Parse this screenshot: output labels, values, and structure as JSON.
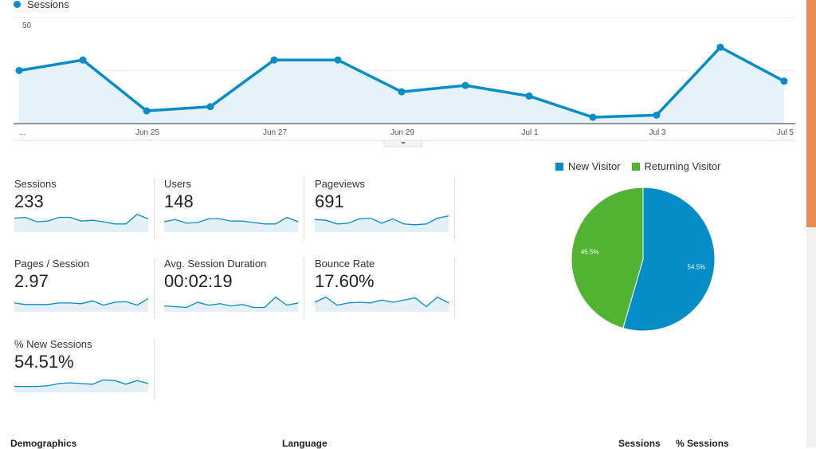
{
  "chart_data": {
    "type": "area",
    "legend": [
      "Sessions"
    ],
    "y_ticks": [
      "50",
      "25"
    ],
    "ylim": [
      0,
      50
    ],
    "x_tick_labels": [
      "...",
      "Jun 25",
      "Jun 27",
      "Jun 29",
      "Jul 1",
      "Jul 3",
      "Jul 5"
    ],
    "x": [
      "Jun 23",
      "Jun 24",
      "Jun 25",
      "Jun 26",
      "Jun 27",
      "Jun 28",
      "Jun 29",
      "Jun 30",
      "Jul 1",
      "Jul 2",
      "Jul 3",
      "Jul 4",
      "Jul 5"
    ],
    "series": [
      {
        "name": "Sessions",
        "color": "#058dc7",
        "values": [
          25,
          30,
          6,
          8,
          30,
          30,
          15,
          18,
          13,
          3,
          4,
          36,
          20
        ]
      }
    ],
    "grid": true
  },
  "metrics": [
    {
      "label": "Sessions",
      "value": "233",
      "spark": [
        19,
        20,
        14,
        15,
        20,
        20,
        15,
        16,
        14,
        11,
        11,
        24,
        18
      ]
    },
    {
      "label": "Users",
      "value": "148",
      "spark": [
        14,
        17,
        12,
        13,
        18,
        18,
        15,
        15,
        13,
        11,
        11,
        20,
        14
      ]
    },
    {
      "label": "Pageviews",
      "value": "691",
      "spark": [
        17,
        16,
        11,
        12,
        18,
        19,
        12,
        18,
        11,
        10,
        11,
        19,
        22
      ]
    },
    {
      "label": "Pages / Session",
      "value": "2.97",
      "spark": [
        12,
        10,
        10,
        10,
        12,
        12,
        11,
        15,
        9,
        13,
        14,
        9,
        18
      ]
    },
    {
      "label": "Avg. Session Duration",
      "value": "00:02:19",
      "spark": [
        8,
        7,
        6,
        13,
        9,
        11,
        8,
        10,
        6,
        6,
        20,
        9,
        12
      ]
    },
    {
      "label": "Bounce Rate",
      "value": "17.60%",
      "spark": [
        13,
        20,
        9,
        12,
        13,
        12,
        16,
        13,
        16,
        19,
        7,
        20,
        12
      ]
    },
    {
      "label": "% New Sessions",
      "value": "54.51%",
      "spark": [
        8,
        8,
        8,
        9,
        12,
        13,
        12,
        11,
        17,
        16,
        11,
        16,
        12
      ]
    }
  ],
  "pie": {
    "legend": [
      {
        "label": "New Visitor",
        "color": "#058dc7"
      },
      {
        "label": "Returning Visitor",
        "color": "#50b432"
      }
    ],
    "slices": [
      {
        "name": "New Visitor",
        "value": 54.5,
        "label": "54.5%",
        "color": "#058dc7"
      },
      {
        "name": "Returning Visitor",
        "value": 45.5,
        "label": "45.5%",
        "color": "#50b432"
      }
    ]
  },
  "bottom_table": {
    "demographics": "Demographics",
    "language": "Language",
    "sessions": "Sessions",
    "pct_sessions": "% Sessions"
  },
  "colors": {
    "accent": "#058dc7",
    "area_fill": "#e6f2f9",
    "spark_fill": "#e3f0f8",
    "returning": "#50b432",
    "scroll_thumb": "#ea8a55"
  }
}
